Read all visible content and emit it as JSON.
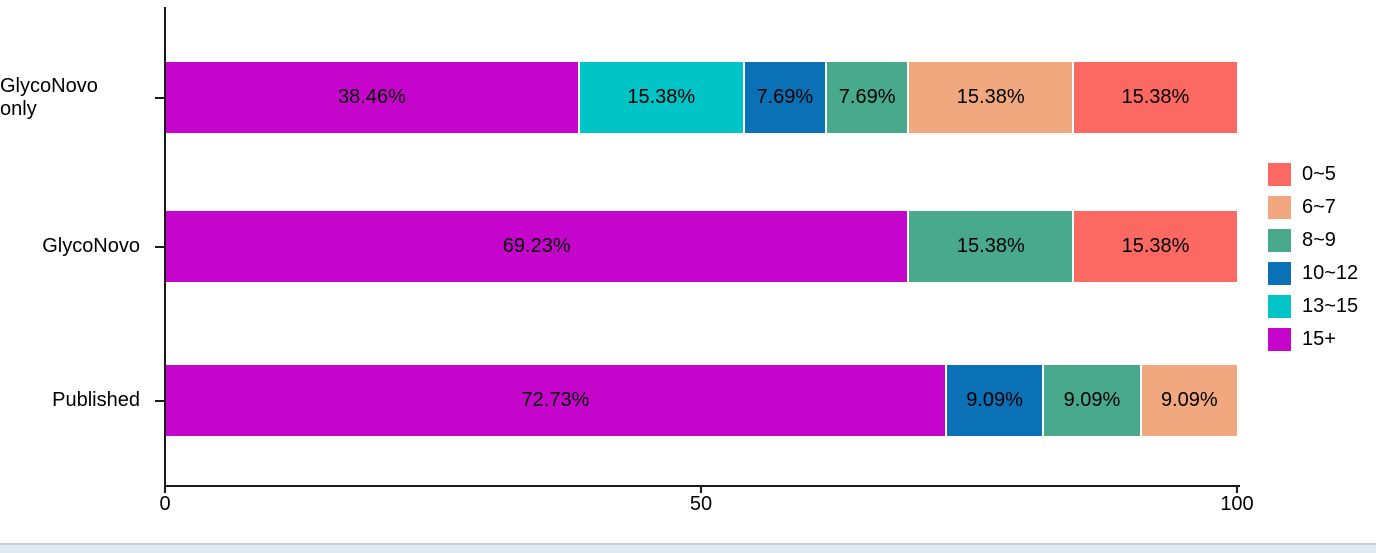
{
  "page": {
    "background": "#ffffff",
    "bottom_edge": {
      "line_color": "#c7cdd4",
      "fill_color": "#e0eaf3"
    }
  },
  "chart_data": {
    "type": "bar",
    "orientation": "horizontal",
    "stacked": true,
    "title": "",
    "grid": false,
    "categories": [
      "GlycoNovo only",
      "GlycoNovo",
      "Published"
    ],
    "series": [
      {
        "name": "15+",
        "color": "#C605CC",
        "values": [
          38.46,
          69.23,
          72.73
        ]
      },
      {
        "name": "13~15",
        "color": "#00C4C6",
        "values": [
          15.38,
          0.0,
          0.0
        ]
      },
      {
        "name": "10~12",
        "color": "#0A71B7",
        "values": [
          7.69,
          0.0,
          9.09
        ]
      },
      {
        "name": "8~9",
        "color": "#49A98D",
        "values": [
          7.69,
          15.38,
          9.09
        ]
      },
      {
        "name": "6~7",
        "color": "#F1A87E",
        "values": [
          15.38,
          0.0,
          9.09
        ]
      },
      {
        "name": "0~5",
        "color": "#FB6962",
        "values": [
          15.38,
          15.38,
          0.0
        ]
      }
    ],
    "segment_labels": [
      [
        "38.46%",
        "15.38%",
        "7.69%",
        "7.69%",
        "15.38%",
        "15.38%"
      ],
      [
        "69.23%",
        "15.38%",
        "15.38%"
      ],
      [
        "72.73%",
        "9.09%",
        "9.09%",
        "9.09%"
      ]
    ],
    "x_axis": {
      "range": [
        0,
        100
      ],
      "tick_values": [
        0,
        50,
        100
      ],
      "tick_labels": [
        "0",
        "50",
        "100"
      ]
    },
    "legend": {
      "position": "right",
      "entries": [
        "0~5",
        "6~7",
        "8~9",
        "10~12",
        "13~15",
        "15+"
      ]
    }
  }
}
